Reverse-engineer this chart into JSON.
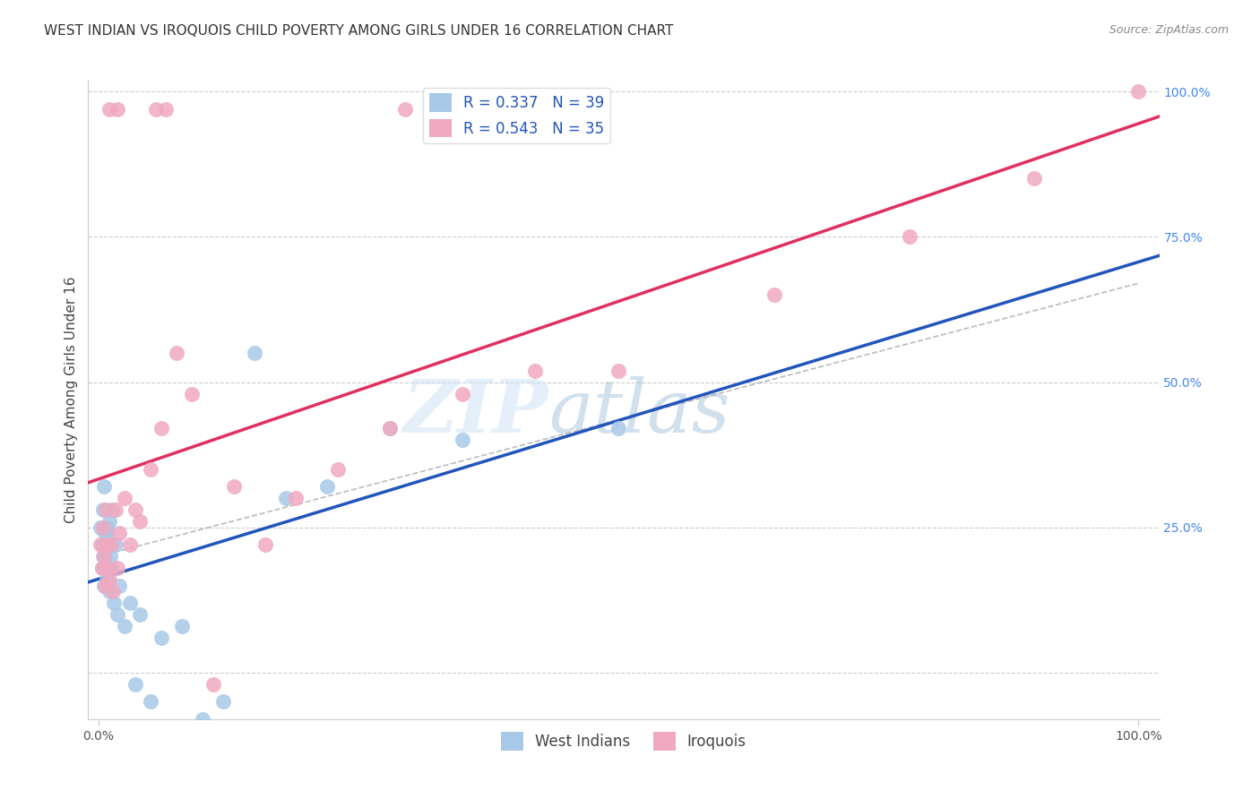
{
  "title": "WEST INDIAN VS IROQUOIS CHILD POVERTY AMONG GIRLS UNDER 16 CORRELATION CHART",
  "source": "Source: ZipAtlas.com",
  "ylabel": "Child Poverty Among Girls Under 16",
  "west_indian_R": 0.337,
  "west_indian_N": 39,
  "iroquois_R": 0.543,
  "iroquois_N": 35,
  "blue_color": "#a8c8e8",
  "pink_color": "#f0a8c0",
  "blue_line_color": "#2255bb",
  "pink_line_color": "#e03060",
  "dash_color": "#aaaaaa",
  "right_tick_color": "#4488ee",
  "grid_color": "#cccccc",
  "background_color": "#ffffff",
  "title_fontsize": 11,
  "axis_label_fontsize": 11,
  "tick_fontsize": 10,
  "legend_fontsize": 12,
  "watermark_text": "ZIP",
  "watermark_text2": "atlas",
  "wi_x": [
    0.002,
    0.003,
    0.003,
    0.004,
    0.004,
    0.005,
    0.005,
    0.006,
    0.006,
    0.007,
    0.007,
    0.008,
    0.008,
    0.009,
    0.009,
    0.01,
    0.01,
    0.011,
    0.012,
    0.013,
    0.015,
    0.016,
    0.018,
    0.02,
    0.025,
    0.03,
    0.035,
    0.04,
    0.05,
    0.06,
    0.08,
    0.1,
    0.12,
    0.15,
    0.18,
    0.22,
    0.28,
    0.35,
    0.5
  ],
  "wi_y": [
    0.25,
    0.22,
    0.18,
    0.2,
    0.28,
    0.15,
    0.32,
    0.24,
    0.2,
    0.22,
    0.18,
    0.25,
    0.16,
    0.22,
    0.24,
    0.14,
    0.26,
    0.2,
    0.18,
    0.28,
    0.12,
    0.22,
    0.1,
    0.15,
    0.08,
    0.12,
    -0.02,
    0.1,
    -0.05,
    0.06,
    0.08,
    -0.08,
    -0.05,
    0.55,
    0.3,
    0.32,
    0.42,
    0.4,
    0.42
  ],
  "ir_x": [
    0.002,
    0.003,
    0.004,
    0.005,
    0.006,
    0.007,
    0.008,
    0.009,
    0.01,
    0.012,
    0.014,
    0.016,
    0.018,
    0.02,
    0.025,
    0.03,
    0.035,
    0.04,
    0.05,
    0.06,
    0.075,
    0.09,
    0.11,
    0.13,
    0.16,
    0.19,
    0.23,
    0.28,
    0.35,
    0.42,
    0.5,
    0.65,
    0.78,
    0.9,
    1.0
  ],
  "ir_y": [
    0.22,
    0.18,
    0.25,
    0.2,
    0.15,
    0.28,
    0.22,
    0.18,
    0.16,
    0.22,
    0.14,
    0.28,
    0.18,
    0.24,
    0.3,
    0.22,
    0.28,
    0.26,
    0.35,
    0.42,
    0.55,
    0.48,
    -0.02,
    0.32,
    0.22,
    0.3,
    0.35,
    0.42,
    0.48,
    0.52,
    0.52,
    0.65,
    0.75,
    0.85,
    1.0
  ],
  "ir_top_x": [
    0.01,
    0.018,
    0.055,
    0.065,
    0.295,
    0.32
  ],
  "ir_top_y": [
    0.97,
    0.97,
    0.97,
    0.97,
    0.97,
    0.97
  ],
  "ylim_min": -0.08,
  "ylim_max": 1.02,
  "xlim_min": -0.01,
  "xlim_max": 1.02
}
